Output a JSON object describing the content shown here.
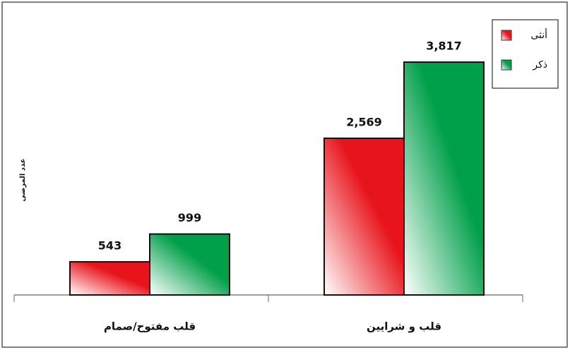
{
  "chart_data": {
    "type": "bar",
    "y_label": "عدد المرضى",
    "categories": [
      "قلب مفتوح/صمام",
      "قلب و شرايين"
    ],
    "series": [
      {
        "name": "أنثى",
        "color": "#e8141c",
        "values": [
          543,
          2569
        ],
        "value_labels": [
          "543",
          "2,569"
        ]
      },
      {
        "name": "ذكر",
        "color": "#00a04a",
        "values": [
          999,
          3817
        ],
        "value_labels": [
          "999",
          "3,817"
        ]
      }
    ],
    "ylim": [
      0,
      4500
    ],
    "grid": false,
    "legend": "top-right"
  }
}
